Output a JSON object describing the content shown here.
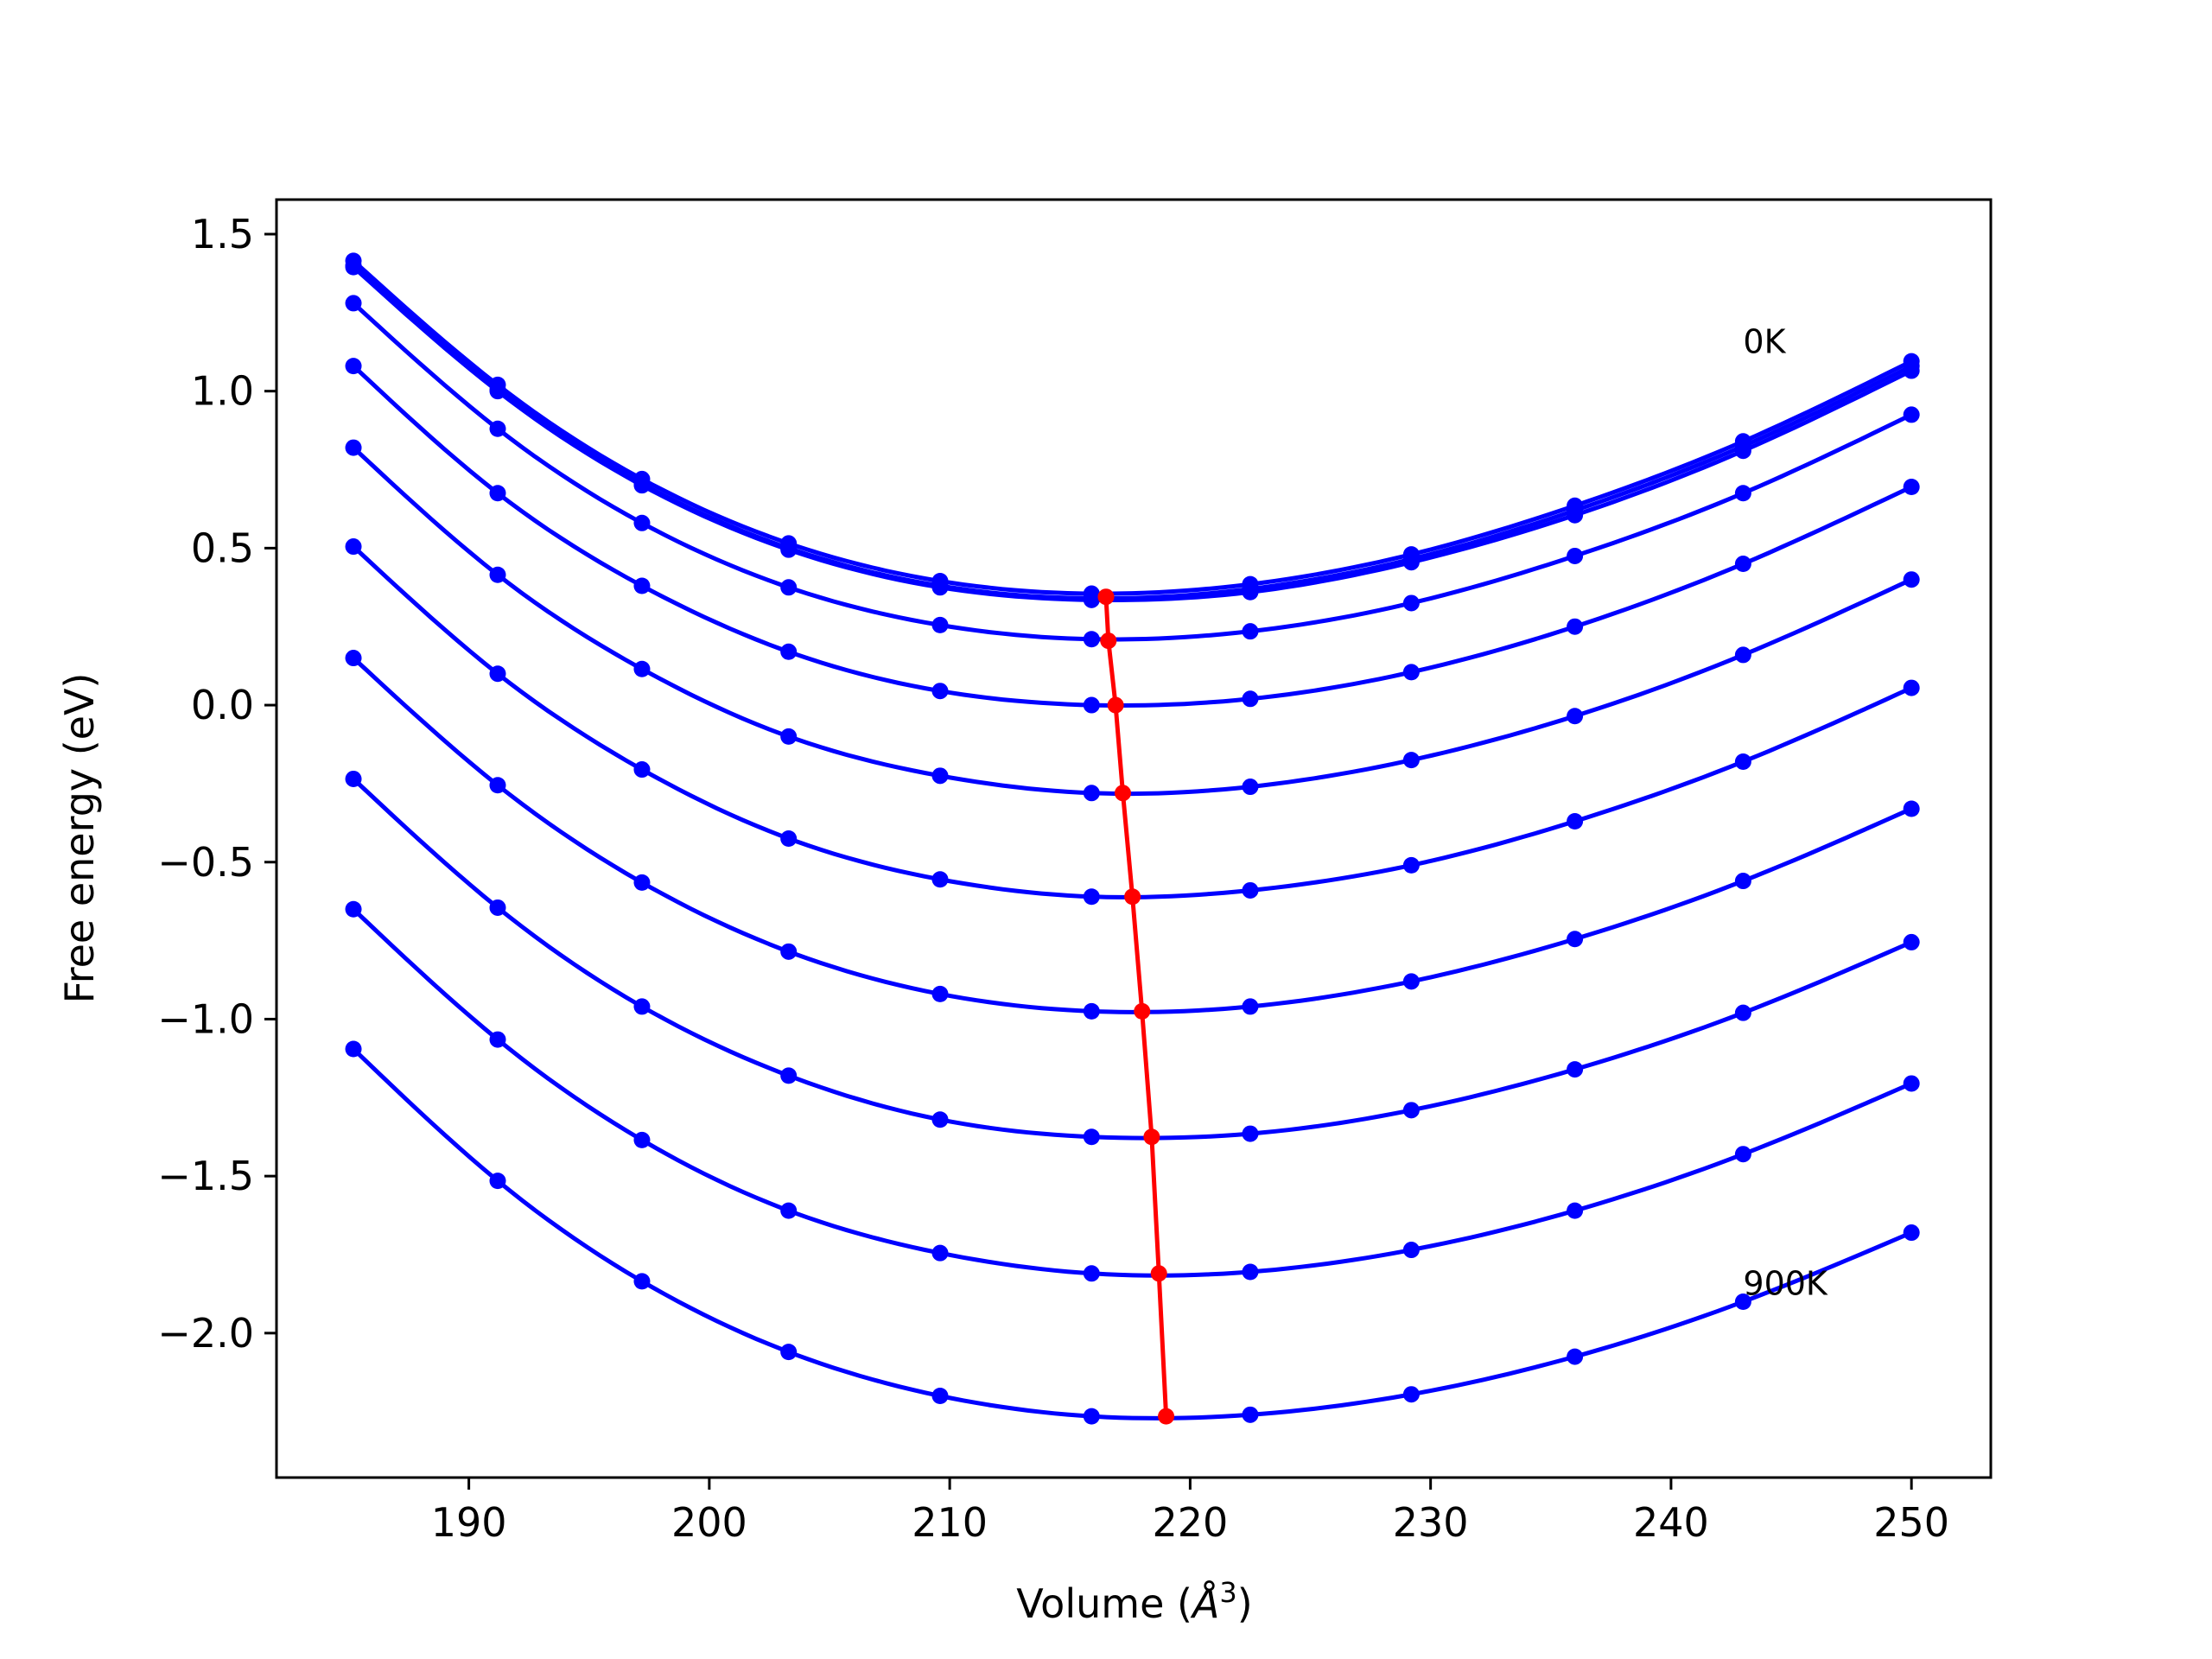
{
  "chart_data": {
    "type": "line",
    "xlabel": "Volume (",
    "xlabel_symbol": "Å",
    "xlabel_sup": "3",
    "xlabel_close": ")",
    "ylabel": "Free energy (eV)",
    "xlim": [
      182.0,
      253.3
    ],
    "ylim": [
      -2.46,
      1.61
    ],
    "xticks": [
      190,
      200,
      210,
      220,
      230,
      240,
      250
    ],
    "xtick_labels": [
      "190",
      "200",
      "210",
      "220",
      "230",
      "240",
      "250"
    ],
    "yticks": [
      1.5,
      1.0,
      0.5,
      0.0,
      -0.5,
      -1.0,
      -1.5,
      -2.0
    ],
    "ytick_labels": [
      "1.5",
      "1.0",
      "0.5",
      "0.0",
      "−0.5",
      "−1.0",
      "−1.5",
      "−2.0"
    ],
    "grid": false,
    "annotations": [
      {
        "text": "0K",
        "x": 243.0,
        "y": 1.16
      },
      {
        "text": "900K",
        "x": 243.0,
        "y": -1.84
      }
    ],
    "x": [
      185.2,
      191.2,
      197.2,
      203.3,
      209.6,
      215.9,
      222.5,
      229.2,
      236.0,
      243.0,
      250.0
    ],
    "series_color": "#0000ff",
    "series": [
      {
        "values": [
          1.415,
          1.02,
          0.72,
          0.515,
          0.395,
          0.355,
          0.385,
          0.48,
          0.635,
          0.84,
          1.095
        ]
      },
      {
        "values": [
          1.4,
          1.005,
          0.705,
          0.5,
          0.38,
          0.34,
          0.37,
          0.465,
          0.62,
          0.825,
          1.08
        ]
      },
      {
        "values": [
          1.395,
          1.0,
          0.7,
          0.495,
          0.375,
          0.335,
          0.36,
          0.455,
          0.605,
          0.81,
          1.065
        ]
      },
      {
        "values": [
          1.28,
          0.88,
          0.58,
          0.375,
          0.255,
          0.21,
          0.235,
          0.325,
          0.475,
          0.675,
          0.925
        ]
      },
      {
        "values": [
          1.08,
          0.675,
          0.38,
          0.17,
          0.045,
          0.0,
          0.02,
          0.105,
          0.25,
          0.45,
          0.695
        ]
      },
      {
        "values": [
          0.82,
          0.415,
          0.115,
          -0.1,
          -0.225,
          -0.28,
          -0.26,
          -0.175,
          -0.035,
          0.16,
          0.4
        ]
      },
      {
        "values": [
          0.505,
          0.1,
          -0.205,
          -0.425,
          -0.555,
          -0.61,
          -0.59,
          -0.51,
          -0.37,
          -0.18,
          0.055
        ]
      },
      {
        "values": [
          0.15,
          -0.255,
          -0.565,
          -0.785,
          -0.92,
          -0.975,
          -0.96,
          -0.88,
          -0.745,
          -0.56,
          -0.33
        ]
      },
      {
        "values": [
          -0.235,
          -0.645,
          -0.96,
          -1.18,
          -1.32,
          -1.375,
          -1.365,
          -1.29,
          -1.16,
          -0.98,
          -0.755
        ]
      },
      {
        "values": [
          -0.65,
          -1.065,
          -1.385,
          -1.61,
          -1.745,
          -1.81,
          -1.805,
          -1.735,
          -1.61,
          -1.43,
          -1.205
        ]
      },
      {
        "values": [
          -1.095,
          -1.515,
          -1.835,
          -2.06,
          -2.2,
          -2.265,
          -2.26,
          -2.195,
          -2.075,
          -1.9,
          -1.68
        ]
      }
    ],
    "minima_color": "#ff0000",
    "minima": {
      "x": [
        216.5,
        216.6,
        216.9,
        217.2,
        217.6,
        218.0,
        218.4,
        218.7,
        219.0
      ],
      "y": [
        0.345,
        0.205,
        0.0,
        -0.28,
        -0.61,
        -0.975,
        -1.375,
        -1.81,
        -2.265
      ]
    }
  }
}
